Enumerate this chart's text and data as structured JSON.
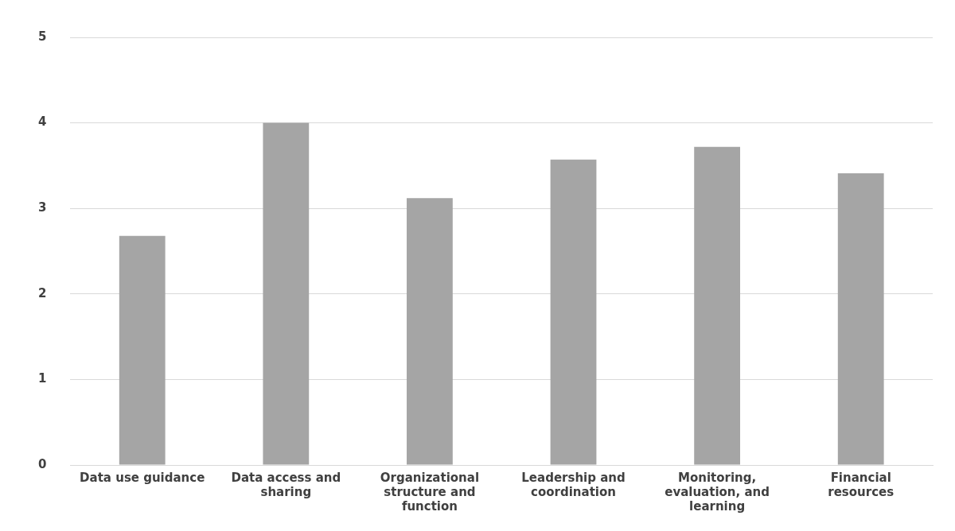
{
  "chart_data": {
    "type": "bar",
    "categories": [
      "Data use guidance",
      "Data access and sharing",
      "Organizational structure and function",
      "Leadership and coordination",
      "Monitoring, evaluation, and learning",
      "Financial resources"
    ],
    "values": [
      2.68,
      4.0,
      3.12,
      3.57,
      3.72,
      3.41
    ],
    "color": "#a5a5a5",
    "ylim": [
      0,
      5
    ],
    "yticks": [
      0,
      1,
      2,
      3,
      4,
      5
    ],
    "grid": "y",
    "legend": false
  }
}
